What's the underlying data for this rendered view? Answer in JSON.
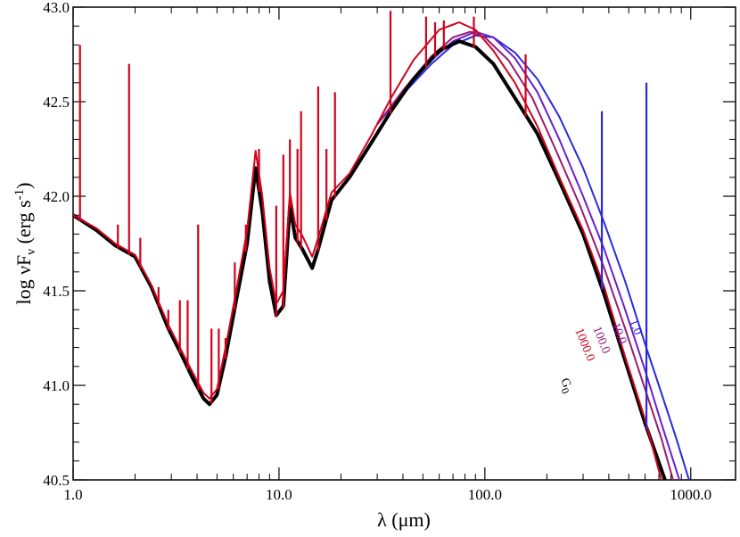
{
  "chart_data": {
    "type": "line",
    "xscale": "log",
    "xlim": [
      1.0,
      1650.0
    ],
    "ylim": [
      40.5,
      43.0
    ],
    "xlabel": "λ (μm)",
    "ylabel": "log νFν (erg s-1)",
    "ylabel_parts": {
      "main": "log νF",
      "sub": "ν",
      "mid": " (erg s",
      "sup": "-1",
      "end": ")"
    },
    "x_ticks": [
      {
        "value": 1.0,
        "label": "1.0"
      },
      {
        "value": 10.0,
        "label": "10.0"
      },
      {
        "value": 100.0,
        "label": "100.0"
      },
      {
        "value": 1000.0,
        "label": "1000.0"
      }
    ],
    "y_ticks": [
      {
        "value": 40.5,
        "label": "40.5"
      },
      {
        "value": 41.0,
        "label": "41.0"
      },
      {
        "value": 41.5,
        "label": "41.5"
      },
      {
        "value": 42.0,
        "label": "42.0"
      },
      {
        "value": 42.5,
        "label": "42.5"
      },
      {
        "value": 43.0,
        "label": "43.0"
      }
    ],
    "legend_title": "G0",
    "legend_title_parts": {
      "main": "G",
      "sub": "0"
    },
    "series": [
      {
        "name": "G0",
        "label": "",
        "color": "#000000",
        "width": 4,
        "points": [
          [
            1.0,
            41.9
          ],
          [
            1.3,
            41.82
          ],
          [
            1.6,
            41.74
          ],
          [
            2.0,
            41.68
          ],
          [
            2.4,
            41.52
          ],
          [
            2.9,
            41.3
          ],
          [
            3.3,
            41.18
          ],
          [
            3.8,
            41.04
          ],
          [
            4.3,
            40.93
          ],
          [
            4.6,
            40.9
          ],
          [
            5.0,
            40.95
          ],
          [
            5.5,
            41.15
          ],
          [
            6.2,
            41.45
          ],
          [
            7.0,
            41.75
          ],
          [
            7.7,
            42.15
          ],
          [
            8.3,
            41.92
          ],
          [
            9.0,
            41.55
          ],
          [
            9.7,
            41.37
          ],
          [
            10.5,
            41.42
          ],
          [
            11.3,
            41.95
          ],
          [
            12.0,
            41.78
          ],
          [
            13.0,
            41.72
          ],
          [
            14.5,
            41.62
          ],
          [
            15.5,
            41.72
          ],
          [
            18.0,
            41.98
          ],
          [
            22.0,
            42.1
          ],
          [
            28.0,
            42.28
          ],
          [
            35.0,
            42.45
          ],
          [
            45.0,
            42.62
          ],
          [
            60.0,
            42.77
          ],
          [
            75.0,
            42.82
          ],
          [
            90.0,
            42.79
          ],
          [
            110.0,
            42.7
          ],
          [
            140.0,
            42.52
          ],
          [
            180.0,
            42.33
          ],
          [
            230.0,
            42.08
          ],
          [
            300.0,
            41.8
          ],
          [
            380.0,
            41.48
          ],
          [
            480.0,
            41.13
          ],
          [
            600.0,
            40.8
          ],
          [
            750.0,
            40.5
          ]
        ]
      },
      {
        "name": "1000.0",
        "label": "1000.0",
        "color": "#d0021b",
        "width": 2,
        "points": [
          [
            1.0,
            41.9
          ],
          [
            1.3,
            41.83
          ],
          [
            1.6,
            41.75
          ],
          [
            2.0,
            41.69
          ],
          [
            2.4,
            41.53
          ],
          [
            2.9,
            41.32
          ],
          [
            3.3,
            41.2
          ],
          [
            3.8,
            41.07
          ],
          [
            4.3,
            40.96
          ],
          [
            4.6,
            40.93
          ],
          [
            5.0,
            40.98
          ],
          [
            5.5,
            41.2
          ],
          [
            6.2,
            41.5
          ],
          [
            7.0,
            41.82
          ],
          [
            7.7,
            42.24
          ],
          [
            8.3,
            42.0
          ],
          [
            9.0,
            41.62
          ],
          [
            9.7,
            41.43
          ],
          [
            10.5,
            41.5
          ],
          [
            11.3,
            42.02
          ],
          [
            12.0,
            41.85
          ],
          [
            13.0,
            41.79
          ],
          [
            14.5,
            41.68
          ],
          [
            15.5,
            41.78
          ],
          [
            18.0,
            42.02
          ],
          [
            22.0,
            42.12
          ],
          [
            28.0,
            42.32
          ],
          [
            35.0,
            42.52
          ],
          [
            45.0,
            42.72
          ],
          [
            60.0,
            42.88
          ],
          [
            75.0,
            42.92
          ],
          [
            90.0,
            42.88
          ],
          [
            110.0,
            42.77
          ],
          [
            140.0,
            42.6
          ],
          [
            180.0,
            42.37
          ],
          [
            230.0,
            42.1
          ],
          [
            300.0,
            41.82
          ],
          [
            380.0,
            41.52
          ],
          [
            480.0,
            41.15
          ],
          [
            600.0,
            40.82
          ],
          [
            720.0,
            40.5
          ]
        ]
      },
      {
        "name": "100.0",
        "label": "100.0",
        "color": "#9b1a6e",
        "width": 2,
        "points": [
          [
            30.0,
            42.38
          ],
          [
            40.0,
            42.56
          ],
          [
            55.0,
            42.74
          ],
          [
            70.0,
            42.84
          ],
          [
            85.0,
            42.87
          ],
          [
            100.0,
            42.84
          ],
          [
            130.0,
            42.72
          ],
          [
            170.0,
            42.52
          ],
          [
            220.0,
            42.25
          ],
          [
            290.0,
            41.95
          ],
          [
            380.0,
            41.62
          ],
          [
            480.0,
            41.3
          ],
          [
            600.0,
            40.98
          ],
          [
            720.0,
            40.72
          ],
          [
            820.0,
            40.5
          ]
        ]
      },
      {
        "name": "10.0",
        "label": "10.0",
        "color": "#6a1fd0",
        "width": 2,
        "points": [
          [
            30.0,
            42.38
          ],
          [
            40.0,
            42.55
          ],
          [
            55.0,
            42.72
          ],
          [
            70.0,
            42.82
          ],
          [
            90.0,
            42.87
          ],
          [
            110.0,
            42.84
          ],
          [
            140.0,
            42.73
          ],
          [
            180.0,
            42.55
          ],
          [
            230.0,
            42.3
          ],
          [
            300.0,
            42.0
          ],
          [
            380.0,
            41.72
          ],
          [
            480.0,
            41.4
          ],
          [
            600.0,
            41.08
          ],
          [
            720.0,
            40.8
          ],
          [
            880.0,
            40.5
          ]
        ]
      },
      {
        "name": "1.0",
        "label": "1.0",
        "color": "#2a2ae0",
        "width": 2,
        "points": [
          [
            30.0,
            42.38
          ],
          [
            40.0,
            42.54
          ],
          [
            55.0,
            42.7
          ],
          [
            70.0,
            42.8
          ],
          [
            90.0,
            42.85
          ],
          [
            110.0,
            42.84
          ],
          [
            140.0,
            42.76
          ],
          [
            180.0,
            42.62
          ],
          [
            230.0,
            42.42
          ],
          [
            300.0,
            42.15
          ],
          [
            380.0,
            41.86
          ],
          [
            480.0,
            41.55
          ],
          [
            600.0,
            41.22
          ],
          [
            720.0,
            40.96
          ],
          [
            850.0,
            40.72
          ],
          [
            980.0,
            40.5
          ]
        ]
      }
    ],
    "emission_lines": [
      {
        "x": 1.08,
        "peak": 42.8,
        "color": "#d0021b"
      },
      {
        "x": 1.87,
        "peak": 42.7,
        "color": "#d0021b"
      },
      {
        "x": 1.65,
        "peak": 41.85,
        "color": "#d0021b"
      },
      {
        "x": 2.12,
        "peak": 41.78,
        "color": "#d0021b"
      },
      {
        "x": 2.6,
        "peak": 41.52,
        "color": "#d0021b"
      },
      {
        "x": 2.9,
        "peak": 41.4,
        "color": "#d0021b"
      },
      {
        "x": 3.3,
        "peak": 41.45,
        "color": "#d0021b"
      },
      {
        "x": 3.6,
        "peak": 41.45,
        "color": "#d0021b"
      },
      {
        "x": 4.05,
        "peak": 41.85,
        "color": "#d0021b"
      },
      {
        "x": 4.7,
        "peak": 41.3,
        "color": "#d0021b"
      },
      {
        "x": 5.1,
        "peak": 41.3,
        "color": "#d0021b"
      },
      {
        "x": 5.5,
        "peak": 41.25,
        "color": "#d0021b"
      },
      {
        "x": 6.1,
        "peak": 41.65,
        "color": "#d0021b"
      },
      {
        "x": 6.9,
        "peak": 41.85,
        "color": "#d0021b"
      },
      {
        "x": 8.0,
        "peak": 42.25,
        "color": "#d0021b"
      },
      {
        "x": 9.7,
        "peak": 41.95,
        "color": "#d0021b"
      },
      {
        "x": 10.5,
        "peak": 42.22,
        "color": "#d0021b"
      },
      {
        "x": 11.3,
        "peak": 42.3,
        "color": "#d0021b"
      },
      {
        "x": 12.3,
        "peak": 42.25,
        "color": "#d0021b"
      },
      {
        "x": 12.8,
        "peak": 42.45,
        "color": "#d0021b"
      },
      {
        "x": 15.5,
        "peak": 42.58,
        "color": "#d0021b"
      },
      {
        "x": 17.0,
        "peak": 42.25,
        "color": "#d0021b"
      },
      {
        "x": 18.7,
        "peak": 42.55,
        "color": "#d0021b"
      },
      {
        "x": 34.8,
        "peak": 42.98,
        "color": "#d0021b"
      },
      {
        "x": 51.8,
        "peak": 42.95,
        "color": "#d0021b"
      },
      {
        "x": 57.3,
        "peak": 42.92,
        "color": "#d0021b"
      },
      {
        "x": 63.2,
        "peak": 42.93,
        "color": "#d0021b"
      },
      {
        "x": 88.4,
        "peak": 42.95,
        "color": "#d0021b"
      },
      {
        "x": 157.7,
        "peak": 42.75,
        "color": "#d0021b"
      },
      {
        "x": 370.0,
        "peak": 42.45,
        "color": "#2a2ae0"
      },
      {
        "x": 609.0,
        "peak": 42.6,
        "color": "#2a2ae0"
      }
    ]
  }
}
